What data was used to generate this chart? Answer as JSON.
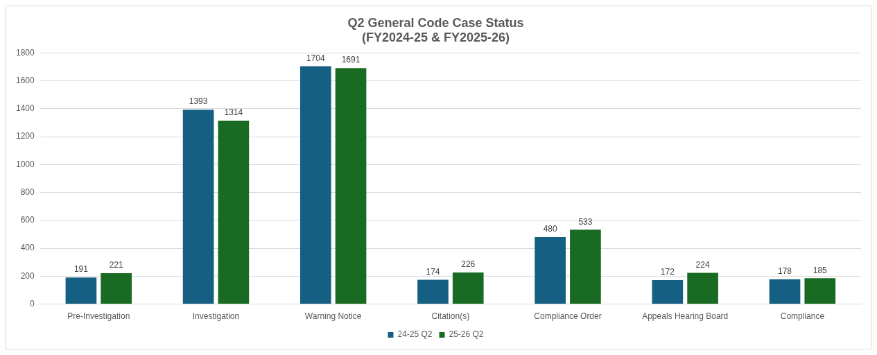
{
  "chart_data": {
    "type": "bar",
    "title": [
      "Q2 General Code Case Status",
      "(FY2024-25 & FY2025-26)"
    ],
    "categories": [
      "Pre-Investigation",
      "Investigation",
      "Warning Notice",
      "Citation(s)",
      "Compliance Order",
      "Appeals Hearing Board",
      "Compliance"
    ],
    "series": [
      {
        "name": "24-25 Q2",
        "color": "#156082",
        "values": [
          191,
          1393,
          1704,
          174,
          480,
          172,
          178
        ]
      },
      {
        "name": "25-26 Q2",
        "color": "#196b24",
        "values": [
          221,
          1314,
          1691,
          226,
          533,
          224,
          185
        ]
      }
    ],
    "ylim": [
      0,
      1800
    ],
    "yticks": [
      0,
      200,
      400,
      600,
      800,
      1000,
      1200,
      1400,
      1600,
      1800
    ],
    "grid": "y",
    "legend": "bottom",
    "data_labels": true
  }
}
